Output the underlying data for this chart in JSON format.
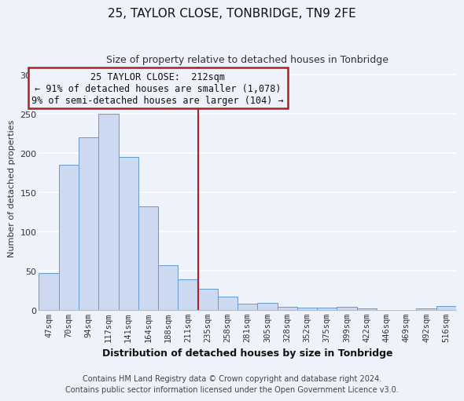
{
  "title": "25, TAYLOR CLOSE, TONBRIDGE, TN9 2FE",
  "subtitle": "Size of property relative to detached houses in Tonbridge",
  "xlabel": "Distribution of detached houses by size in Tonbridge",
  "ylabel": "Number of detached properties",
  "bar_labels": [
    "47sqm",
    "70sqm",
    "94sqm",
    "117sqm",
    "141sqm",
    "164sqm",
    "188sqm",
    "211sqm",
    "235sqm",
    "258sqm",
    "281sqm",
    "305sqm",
    "328sqm",
    "352sqm",
    "375sqm",
    "399sqm",
    "422sqm",
    "446sqm",
    "469sqm",
    "492sqm",
    "516sqm"
  ],
  "bar_values": [
    47,
    185,
    220,
    250,
    195,
    132,
    57,
    39,
    27,
    17,
    8,
    9,
    4,
    3,
    3,
    4,
    2,
    0,
    0,
    2,
    5
  ],
  "bar_color": "#ccd9f0",
  "bar_edgecolor": "#6699cc",
  "vline_x_index": 7,
  "vline_color": "#aa2222",
  "annotation_title": "25 TAYLOR CLOSE:  212sqm",
  "annotation_line1": "← 91% of detached houses are smaller (1,078)",
  "annotation_line2": "9% of semi-detached houses are larger (104) →",
  "annotation_box_edgecolor": "#aa2222",
  "annotation_box_facecolor": "#eef2fa",
  "ylim": [
    0,
    310
  ],
  "yticks": [
    0,
    50,
    100,
    150,
    200,
    250,
    300
  ],
  "footnote1": "Contains HM Land Registry data © Crown copyright and database right 2024.",
  "footnote2": "Contains public sector information licensed under the Open Government Licence v3.0.",
  "background_color": "#eef2fa",
  "grid_color": "#ffffff",
  "title_fontsize": 11,
  "subtitle_fontsize": 9,
  "xlabel_fontsize": 9,
  "ylabel_fontsize": 8,
  "tick_fontsize": 7.5,
  "footnote_fontsize": 7,
  "annotation_fontsize": 8.5
}
